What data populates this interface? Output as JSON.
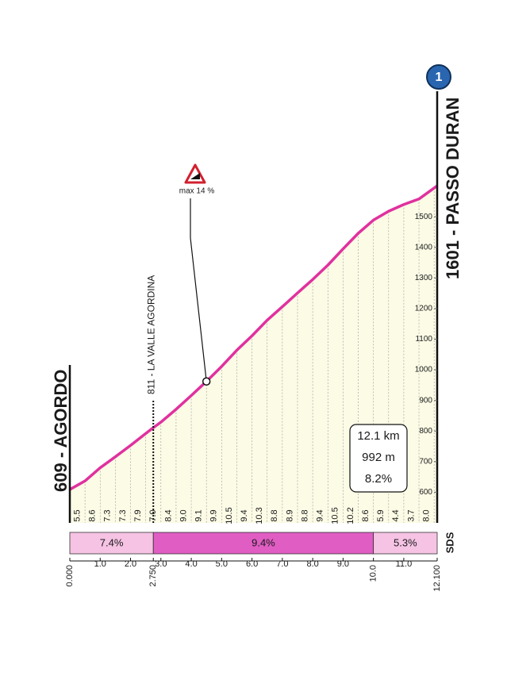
{
  "chart_data": {
    "type": "climb-profile",
    "start_label": "609 - AGORDO",
    "finish_label": "1601 - PASSO DURAN",
    "category_badge": "1",
    "logo": "SDS",
    "waypoint": {
      "km": 2.75,
      "label": "811 - LA VALLE AGORDINA"
    },
    "max_gradient": {
      "km": 4.5,
      "label": "max 14 %"
    },
    "summary": [
      "12.1 km",
      "992 m",
      "8.2%"
    ],
    "profile": {
      "km": [
        0,
        0.5,
        1,
        1.5,
        2,
        2.5,
        2.75,
        3,
        3.5,
        4,
        4.5,
        5,
        5.5,
        6,
        6.5,
        7,
        7.5,
        8,
        8.5,
        9,
        9.5,
        10,
        10.5,
        11,
        11.5,
        12.1
      ],
      "elevations": [
        609,
        637,
        680,
        716,
        753,
        792,
        811,
        829,
        871,
        916,
        962,
        1011,
        1064,
        1111,
        1162,
        1206,
        1251,
        1295,
        1342,
        1395,
        1446,
        1489,
        1518,
        1540,
        1558,
        1601
      ],
      "color": "#e0319f",
      "fill": "#fbfbe6"
    },
    "gradients": [
      5.5,
      8.6,
      7.3,
      7.3,
      7.9,
      7.0,
      8.4,
      9.0,
      9.1,
      9.9,
      10.5,
      9.4,
      10.3,
      8.8,
      8.9,
      8.8,
      9.4,
      10.5,
      10.2,
      8.6,
      5.9,
      4.4,
      3.7,
      8.0
    ],
    "gradient_labels": [
      "5.5",
      "8.6",
      "7.3",
      "7.3",
      "7.9",
      "7.0",
      "8.4",
      "9.0",
      "9.1",
      "9.9",
      "10.5",
      "9.4",
      "10.3",
      "8.8",
      "8.9",
      "8.8",
      "9.4",
      "10.5",
      "10.2",
      "8.6",
      "5.9",
      "4.4",
      "3.7",
      "8.0"
    ],
    "sectors": {
      "bounds": [
        0,
        2.75,
        10,
        12.1
      ],
      "values": [
        7.4,
        9.4,
        5.3
      ],
      "value_labels": [
        "7.4%",
        "9.4%",
        "5.3%"
      ],
      "colors": [
        "#f6c3e4",
        "#e05dc3",
        "#f6c3e4"
      ]
    },
    "xlim": [
      0,
      12.1
    ],
    "xticks": [
      {
        "value": 0,
        "label": "0.000"
      },
      {
        "value": 1,
        "label": "1.0"
      },
      {
        "value": 2,
        "label": "2.0"
      },
      {
        "value": 2.75,
        "label": "2.750"
      },
      {
        "value": 3,
        "label": "3.0"
      },
      {
        "value": 4,
        "label": "4.0"
      },
      {
        "value": 5,
        "label": "5.0"
      },
      {
        "value": 6,
        "label": "6.0"
      },
      {
        "value": 7,
        "label": "7.0"
      },
      {
        "value": 8,
        "label": "8.0"
      },
      {
        "value": 9,
        "label": "9.0"
      },
      {
        "value": 10,
        "label": "10.0"
      },
      {
        "value": 11,
        "label": "11.0"
      },
      {
        "value": 12.1,
        "label": "12.100"
      }
    ],
    "ylim": [
      500,
      1700
    ],
    "yticks": [
      600,
      700,
      800,
      900,
      1000,
      1100,
      1200,
      1300,
      1400,
      1500
    ]
  }
}
